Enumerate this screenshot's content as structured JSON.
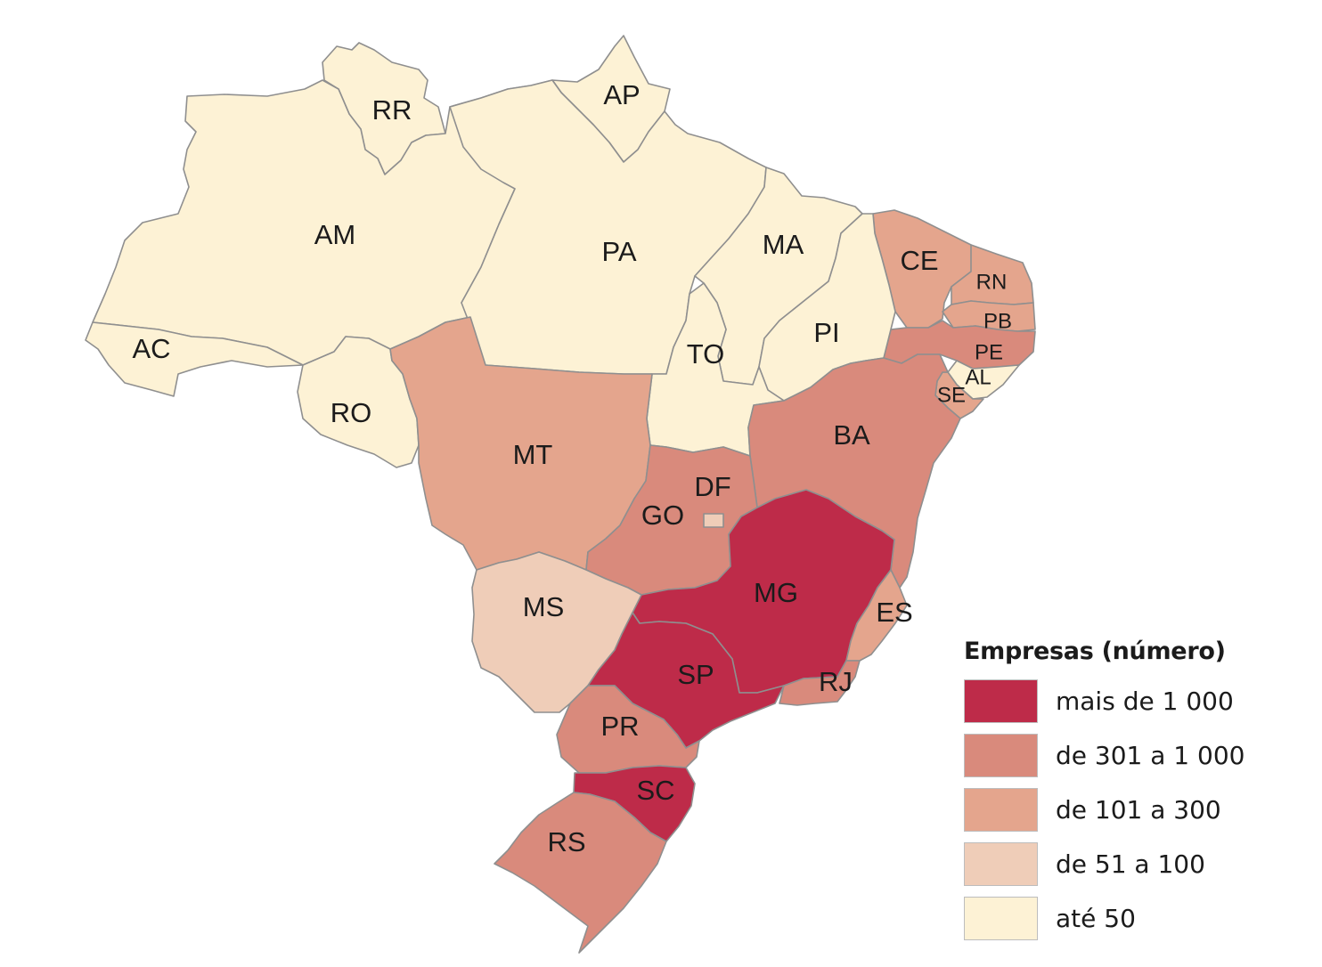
{
  "colors": {
    "more_than_1000": "#be2b49",
    "301_to_1000": "#d98a7c",
    "101_to_300": "#e4a58d",
    "51_to_100": "#efcdb8",
    "up_to_50": "#fdf2d5"
  },
  "states": [
    {
      "id": "RR",
      "label": "RR",
      "class": "up_to_50"
    },
    {
      "id": "AP",
      "label": "AP",
      "class": "up_to_50"
    },
    {
      "id": "AM",
      "label": "AM",
      "class": "up_to_50"
    },
    {
      "id": "PA",
      "label": "PA",
      "class": "up_to_50"
    },
    {
      "id": "MA",
      "label": "MA",
      "class": "up_to_50"
    },
    {
      "id": "CE",
      "label": "CE",
      "class": "101_to_300"
    },
    {
      "id": "RN",
      "label": "RN",
      "class": "101_to_300"
    },
    {
      "id": "PB",
      "label": "PB",
      "class": "101_to_300"
    },
    {
      "id": "PE",
      "label": "PE",
      "class": "301_to_1000"
    },
    {
      "id": "AL",
      "label": "AL",
      "class": "up_to_50"
    },
    {
      "id": "SE",
      "label": "SE",
      "class": "101_to_300"
    },
    {
      "id": "PI",
      "label": "PI",
      "class": "up_to_50"
    },
    {
      "id": "AC",
      "label": "AC",
      "class": "up_to_50"
    },
    {
      "id": "RO",
      "label": "RO",
      "class": "up_to_50"
    },
    {
      "id": "TO",
      "label": "TO",
      "class": "up_to_50"
    },
    {
      "id": "BA",
      "label": "BA",
      "class": "301_to_1000"
    },
    {
      "id": "MT",
      "label": "MT",
      "class": "101_to_300"
    },
    {
      "id": "GO",
      "label": "GO",
      "class": "301_to_1000"
    },
    {
      "id": "DF",
      "label": "DF",
      "class": "51_to_100"
    },
    {
      "id": "MG",
      "label": "MG",
      "class": "more_than_1000"
    },
    {
      "id": "ES",
      "label": "ES",
      "class": "101_to_300"
    },
    {
      "id": "MS",
      "label": "MS",
      "class": "51_to_100"
    },
    {
      "id": "SP",
      "label": "SP",
      "class": "more_than_1000"
    },
    {
      "id": "RJ",
      "label": "RJ",
      "class": "301_to_1000"
    },
    {
      "id": "PR",
      "label": "PR",
      "class": "301_to_1000"
    },
    {
      "id": "SC",
      "label": "SC",
      "class": "more_than_1000"
    },
    {
      "id": "RS",
      "label": "RS",
      "class": "301_to_1000"
    }
  ],
  "legend": {
    "title": "Empresas (número)",
    "items": [
      {
        "label": "mais de 1 000",
        "class": "more_than_1000"
      },
      {
        "label": "de 301 a 1 000",
        "class": "301_to_1000"
      },
      {
        "label": "de 101 a 300",
        "class": "101_to_300"
      },
      {
        "label": "de 51 a 100",
        "class": "51_to_100"
      },
      {
        "label": "até 50",
        "class": "up_to_50"
      }
    ]
  }
}
